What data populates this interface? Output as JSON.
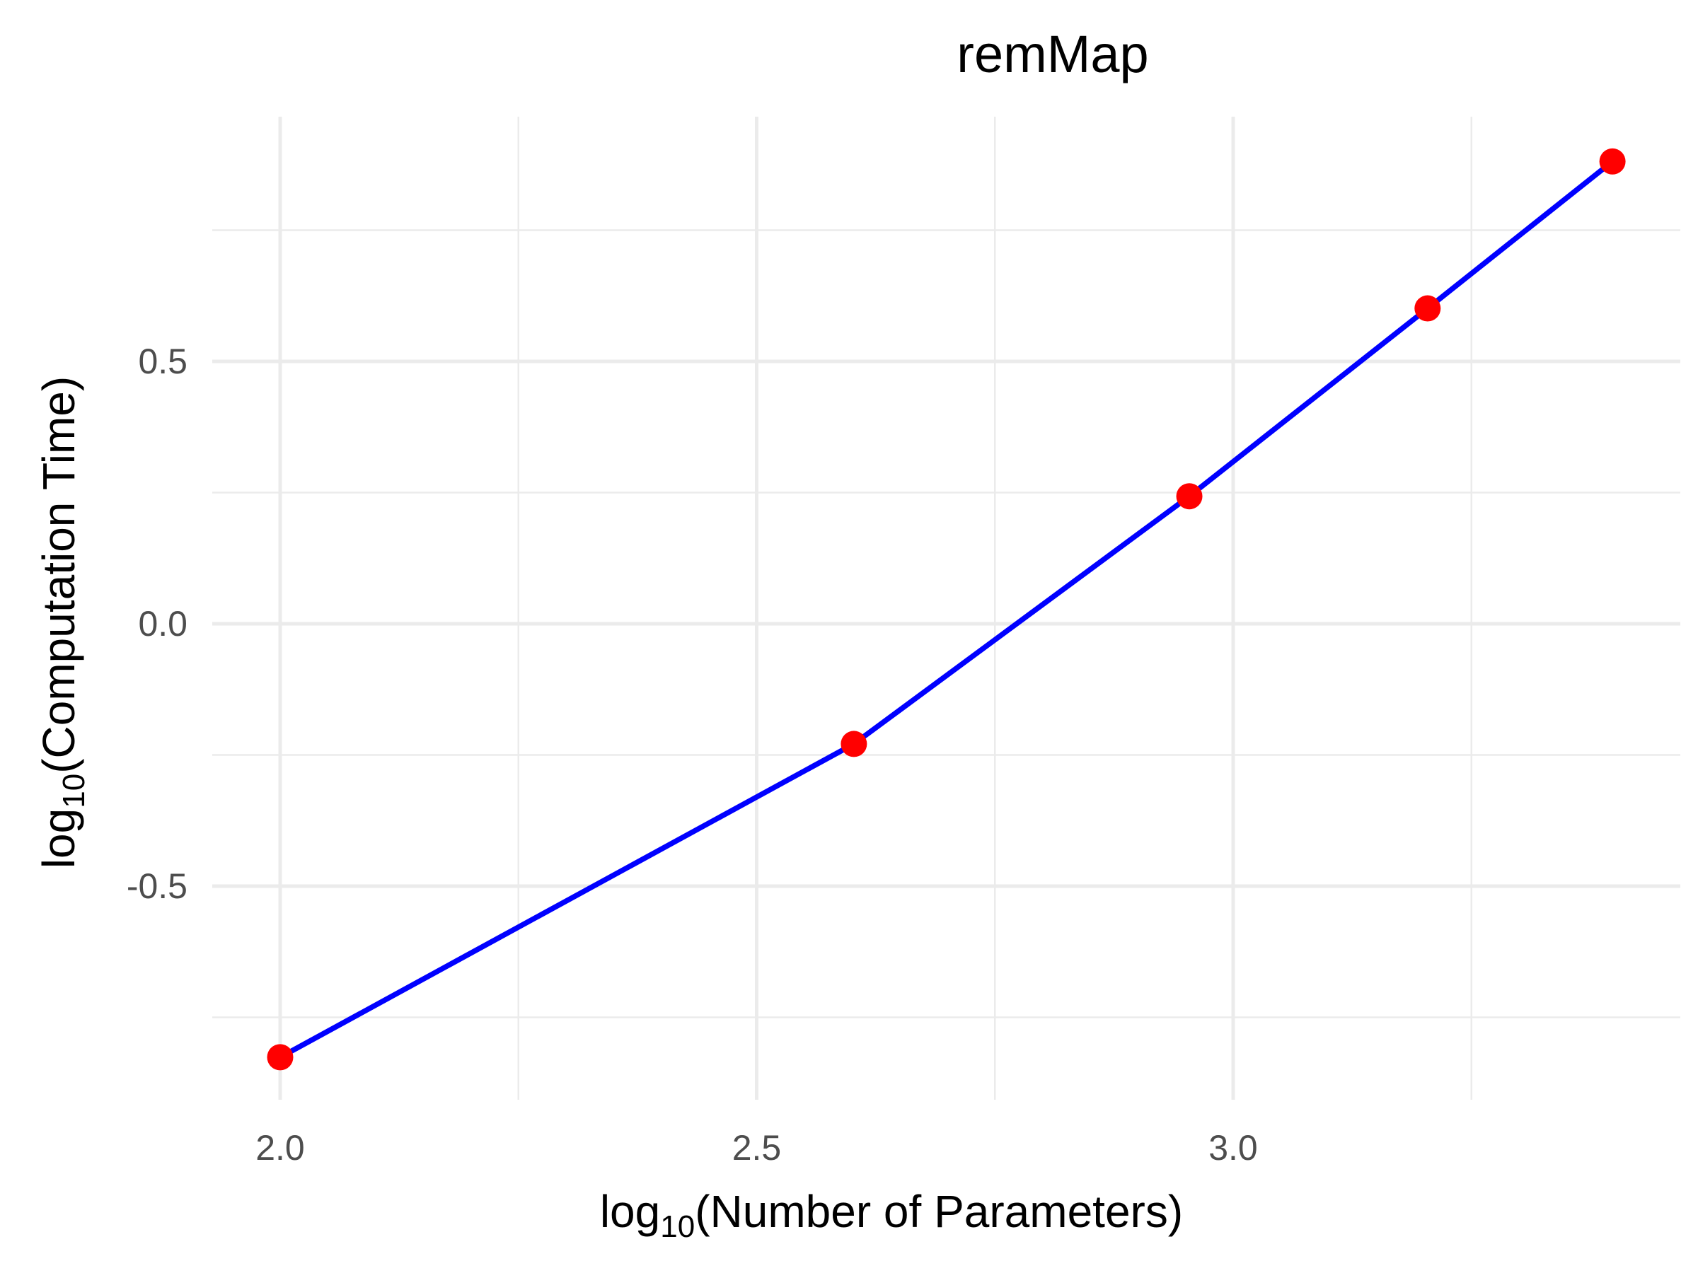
{
  "chart_data": {
    "type": "line",
    "title": "remMap",
    "xlabel": {
      "prefix": "log",
      "subscript": "10",
      "text": "(Number of Parameters)"
    },
    "ylabel": {
      "prefix": "log",
      "subscript": "10",
      "text": "(Computation Time)"
    },
    "xlim": [
      1.97,
      3.47
    ],
    "ylim": [
      -0.9,
      0.97
    ],
    "x_ticks": [
      2.0,
      2.5,
      3.0
    ],
    "x_tick_labels": [
      "2.0",
      "2.5",
      "3.0"
    ],
    "y_ticks": [
      -0.5,
      0.0,
      0.5
    ],
    "y_tick_labels": [
      "-0.5",
      "0.0",
      "0.5"
    ],
    "x_minor_ticks": [
      2.25,
      2.75,
      3.25
    ],
    "y_minor_ticks": [
      -0.75,
      -0.25,
      0.25,
      0.75
    ],
    "grid": true,
    "series": [
      {
        "x": [
          2.0,
          2.602,
          2.954,
          3.204,
          3.398
        ],
        "y": [
          -0.826,
          -0.229,
          0.243,
          0.601,
          0.881
        ],
        "line_color": "#0000ff",
        "point_color": "#ff0000"
      }
    ]
  }
}
